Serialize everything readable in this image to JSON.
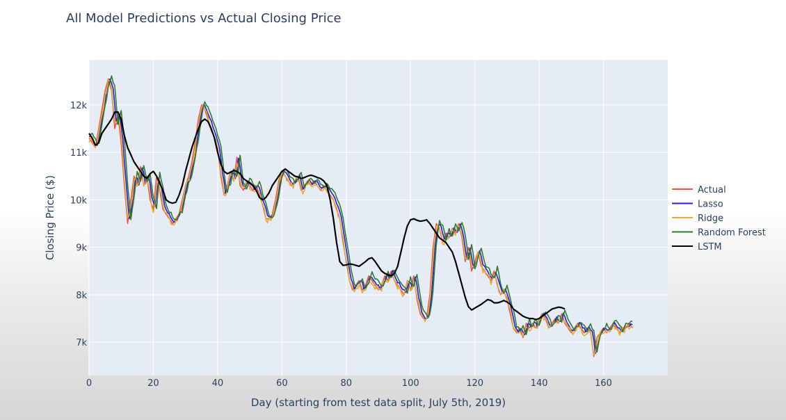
{
  "chart_data": {
    "type": "line",
    "title": "All Model Predictions vs Actual Closing Price",
    "xlabel": "Day (starting from test data split, July 5th, 2019)",
    "ylabel": "Closing Price ($)",
    "xlim": [
      0,
      180
    ],
    "ylim": [
      6300,
      12950
    ],
    "x_ticks": [
      0,
      20,
      40,
      60,
      80,
      100,
      120,
      140,
      160
    ],
    "x_tick_labels": [
      "0",
      "20",
      "40",
      "60",
      "80",
      "100",
      "120",
      "140",
      "160"
    ],
    "y_ticks": [
      7000,
      8000,
      9000,
      10000,
      11000,
      12000
    ],
    "y_tick_labels": [
      "7k",
      "8k",
      "9k",
      "10k",
      "11k",
      "12k"
    ],
    "grid": true,
    "legend_position": "right",
    "anchors": {
      "actual": [
        [
          0,
          11300
        ],
        [
          2,
          11100
        ],
        [
          3,
          11500
        ],
        [
          5,
          12300
        ],
        [
          6,
          12550
        ],
        [
          7,
          12300
        ],
        [
          8,
          11500
        ],
        [
          9,
          11800
        ],
        [
          10,
          11200
        ],
        [
          11,
          10300
        ],
        [
          12,
          9500
        ],
        [
          13,
          10000
        ],
        [
          14,
          10500
        ],
        [
          15,
          10300
        ],
        [
          16,
          10700
        ],
        [
          17,
          10300
        ],
        [
          18,
          10500
        ],
        [
          19,
          10000
        ],
        [
          20,
          9800
        ],
        [
          21,
          10500
        ],
        [
          22,
          10200
        ],
        [
          23,
          9800
        ],
        [
          24,
          9700
        ],
        [
          25,
          9600
        ],
        [
          26,
          9500
        ],
        [
          27,
          9600
        ],
        [
          28,
          9700
        ],
        [
          29,
          10000
        ],
        [
          30,
          10300
        ],
        [
          31,
          10500
        ],
        [
          32,
          10800
        ],
        [
          33,
          11200
        ],
        [
          34,
          11700
        ],
        [
          35,
          12000
        ],
        [
          36,
          11900
        ],
        [
          37,
          11700
        ],
        [
          38,
          11500
        ],
        [
          39,
          11300
        ],
        [
          40,
          11100
        ],
        [
          41,
          10500
        ],
        [
          42,
          10100
        ],
        [
          43,
          10300
        ],
        [
          44,
          10600
        ],
        [
          45,
          10400
        ],
        [
          46,
          10900
        ],
        [
          47,
          10300
        ],
        [
          48,
          10200
        ],
        [
          49,
          10400
        ],
        [
          50,
          10300
        ],
        [
          51,
          10200
        ],
        [
          52,
          10300
        ],
        [
          53,
          10100
        ],
        [
          54,
          9900
        ],
        [
          55,
          9600
        ],
        [
          56,
          9600
        ],
        [
          57,
          9700
        ],
        [
          58,
          10000
        ],
        [
          59,
          10400
        ],
        [
          60,
          10600
        ],
        [
          61,
          10500
        ],
        [
          62,
          10400
        ],
        [
          63,
          10300
        ],
        [
          64,
          10400
        ],
        [
          65,
          10500
        ],
        [
          66,
          10200
        ],
        [
          67,
          10300
        ],
        [
          68,
          10400
        ],
        [
          69,
          10300
        ],
        [
          70,
          10400
        ],
        [
          71,
          10300
        ],
        [
          72,
          10200
        ],
        [
          73,
          10300
        ],
        [
          74,
          10200
        ],
        [
          75,
          10100
        ],
        [
          76,
          10000
        ],
        [
          77,
          9800
        ],
        [
          78,
          9600
        ],
        [
          79,
          9100
        ],
        [
          80,
          8700
        ],
        [
          81,
          8300
        ],
        [
          82,
          8100
        ],
        [
          83,
          8200
        ],
        [
          84,
          8300
        ],
        [
          85,
          8100
        ],
        [
          86,
          8200
        ],
        [
          87,
          8400
        ],
        [
          88,
          8300
        ],
        [
          89,
          8200
        ],
        [
          90,
          8100
        ],
        [
          91,
          8200
        ],
        [
          92,
          8400
        ],
        [
          93,
          8300
        ],
        [
          94,
          8500
        ],
        [
          95,
          8300
        ],
        [
          96,
          8200
        ],
        [
          97,
          8100
        ],
        [
          98,
          8000
        ],
        [
          99,
          8300
        ],
        [
          100,
          8100
        ],
        [
          101,
          8400
        ],
        [
          102,
          7900
        ],
        [
          103,
          7600
        ],
        [
          104,
          7500
        ],
        [
          105,
          7500
        ],
        [
          106,
          8000
        ],
        [
          107,
          9000
        ],
        [
          108,
          9500
        ],
        [
          109,
          9400
        ],
        [
          110,
          9100
        ],
        [
          111,
          9300
        ],
        [
          112,
          9200
        ],
        [
          113,
          9400
        ],
        [
          114,
          9300
        ],
        [
          115,
          9500
        ],
        [
          116,
          9200
        ],
        [
          117,
          8700
        ],
        [
          118,
          9000
        ],
        [
          119,
          8500
        ],
        [
          120,
          8700
        ],
        [
          121,
          8900
        ],
        [
          122,
          8600
        ],
        [
          123,
          8500
        ],
        [
          124,
          8400
        ],
        [
          125,
          8300
        ],
        [
          126,
          8500
        ],
        [
          127,
          8200
        ],
        [
          128,
          8000
        ],
        [
          129,
          8100
        ],
        [
          130,
          7900
        ],
        [
          131,
          7600
        ],
        [
          132,
          7300
        ],
        [
          133,
          7200
        ],
        [
          134,
          7300
        ],
        [
          135,
          7100
        ],
        [
          136,
          7400
        ],
        [
          137,
          7300
        ],
        [
          138,
          7400
        ],
        [
          139,
          7300
        ],
        [
          140,
          7500
        ],
        [
          141,
          7600
        ],
        [
          142,
          7500
        ],
        [
          143,
          7300
        ],
        [
          144,
          7400
        ],
        [
          145,
          7500
        ],
        [
          146,
          7400
        ],
        [
          147,
          7600
        ],
        [
          148,
          7400
        ],
        [
          149,
          7300
        ],
        [
          150,
          7200
        ],
        [
          151,
          7300
        ],
        [
          152,
          7400
        ],
        [
          153,
          7300
        ],
        [
          154,
          7200
        ],
        [
          155,
          7300
        ],
        [
          156,
          7200
        ],
        [
          157,
          6700
        ],
        [
          158,
          7100
        ],
        [
          159,
          7200
        ],
        [
          160,
          7300
        ],
        [
          161,
          7200
        ],
        [
          162,
          7300
        ],
        [
          163,
          7400
        ],
        [
          164,
          7300
        ],
        [
          165,
          7200
        ],
        [
          166,
          7300
        ],
        [
          167,
          7300
        ],
        [
          168,
          7400
        ],
        [
          169,
          7300
        ]
      ],
      "lstm": [
        [
          0,
          11400
        ],
        [
          1,
          11300
        ],
        [
          2,
          11150
        ],
        [
          3,
          11200
        ],
        [
          4,
          11400
        ],
        [
          5,
          11500
        ],
        [
          6,
          11600
        ],
        [
          7,
          11700
        ],
        [
          8,
          11850
        ],
        [
          9,
          11850
        ],
        [
          10,
          11700
        ],
        [
          11,
          11350
        ],
        [
          12,
          11100
        ],
        [
          13,
          10950
        ],
        [
          14,
          10800
        ],
        [
          15,
          10700
        ],
        [
          16,
          10600
        ],
        [
          17,
          10500
        ],
        [
          18,
          10450
        ],
        [
          19,
          10550
        ],
        [
          20,
          10600
        ],
        [
          21,
          10500
        ],
        [
          22,
          10350
        ],
        [
          23,
          10200
        ],
        [
          24,
          10000
        ],
        [
          25,
          9950
        ],
        [
          26,
          9930
        ],
        [
          27,
          9950
        ],
        [
          28,
          10100
        ],
        [
          29,
          10300
        ],
        [
          30,
          10600
        ],
        [
          31,
          10850
        ],
        [
          32,
          11100
        ],
        [
          33,
          11300
        ],
        [
          34,
          11500
        ],
        [
          35,
          11650
        ],
        [
          36,
          11700
        ],
        [
          37,
          11650
        ],
        [
          38,
          11500
        ],
        [
          39,
          11300
        ],
        [
          40,
          11000
        ],
        [
          41,
          10750
        ],
        [
          42,
          10600
        ],
        [
          43,
          10550
        ],
        [
          44,
          10580
        ],
        [
          45,
          10620
        ],
        [
          46,
          10600
        ],
        [
          47,
          10550
        ],
        [
          48,
          10450
        ],
        [
          49,
          10400
        ],
        [
          50,
          10350
        ],
        [
          51,
          10300
        ],
        [
          52,
          10200
        ],
        [
          53,
          10050
        ],
        [
          54,
          10000
        ],
        [
          55,
          10050
        ],
        [
          56,
          10150
        ],
        [
          57,
          10300
        ],
        [
          58,
          10400
        ],
        [
          59,
          10500
        ],
        [
          60,
          10600
        ],
        [
          61,
          10650
        ],
        [
          62,
          10600
        ],
        [
          63,
          10550
        ],
        [
          64,
          10500
        ],
        [
          65,
          10480
        ],
        [
          66,
          10450
        ],
        [
          67,
          10470
        ],
        [
          68,
          10500
        ],
        [
          69,
          10520
        ],
        [
          70,
          10500
        ],
        [
          71,
          10470
        ],
        [
          72,
          10450
        ],
        [
          73,
          10400
        ],
        [
          74,
          10300
        ],
        [
          75,
          10000
        ],
        [
          76,
          9600
        ],
        [
          77,
          9100
        ],
        [
          78,
          8700
        ],
        [
          79,
          8620
        ],
        [
          80,
          8630
        ],
        [
          81,
          8650
        ],
        [
          82,
          8640
        ],
        [
          83,
          8620
        ],
        [
          84,
          8600
        ],
        [
          85,
          8650
        ],
        [
          86,
          8700
        ],
        [
          87,
          8760
        ],
        [
          88,
          8780
        ],
        [
          89,
          8700
        ],
        [
          90,
          8600
        ],
        [
          91,
          8500
        ],
        [
          92,
          8450
        ],
        [
          93,
          8420
        ],
        [
          94,
          8400
        ],
        [
          95,
          8450
        ],
        [
          96,
          8600
        ],
        [
          97,
          8900
        ],
        [
          98,
          9200
        ],
        [
          99,
          9450
        ],
        [
          100,
          9580
        ],
        [
          101,
          9600
        ],
        [
          102,
          9570
        ],
        [
          103,
          9550
        ],
        [
          104,
          9560
        ],
        [
          105,
          9580
        ],
        [
          106,
          9500
        ],
        [
          107,
          9400
        ],
        [
          108,
          9300
        ],
        [
          109,
          9200
        ],
        [
          110,
          9150
        ],
        [
          111,
          9100
        ],
        [
          112,
          9000
        ],
        [
          113,
          8900
        ],
        [
          114,
          8700
        ],
        [
          115,
          8450
        ],
        [
          116,
          8200
        ],
        [
          117,
          7950
        ],
        [
          118,
          7750
        ],
        [
          119,
          7680
        ],
        [
          120,
          7720
        ],
        [
          121,
          7760
        ],
        [
          122,
          7800
        ],
        [
          123,
          7850
        ],
        [
          124,
          7900
        ],
        [
          125,
          7880
        ],
        [
          126,
          7830
        ],
        [
          127,
          7830
        ],
        [
          128,
          7850
        ],
        [
          129,
          7880
        ],
        [
          130,
          7850
        ],
        [
          131,
          7800
        ],
        [
          132,
          7700
        ],
        [
          133,
          7650
        ],
        [
          134,
          7600
        ],
        [
          135,
          7550
        ],
        [
          136,
          7520
        ],
        [
          137,
          7500
        ],
        [
          138,
          7500
        ],
        [
          139,
          7480
        ],
        [
          140,
          7500
        ],
        [
          141,
          7550
        ],
        [
          142,
          7600
        ],
        [
          143,
          7650
        ],
        [
          144,
          7700
        ],
        [
          145,
          7720
        ],
        [
          146,
          7740
        ],
        [
          147,
          7730
        ],
        [
          148,
          7700
        ]
      ]
    },
    "series": [
      {
        "name": "Actual",
        "color": "#ef553b",
        "base": "actual",
        "shift": 0,
        "amp": 0,
        "offset": 0,
        "seed": 3
      },
      {
        "name": "Lasso",
        "color": "#1f1fd4",
        "base": "actual",
        "shift": 0.6,
        "amp": 60,
        "offset": 20,
        "seed": 11
      },
      {
        "name": "Ridge",
        "color": "#e8a83a",
        "base": "actual",
        "shift": 0.2,
        "amp": 160,
        "offset": -30,
        "seed": 23
      },
      {
        "name": "Random Forest",
        "color": "#2f7a2f",
        "base": "actual",
        "shift": 1.0,
        "amp": 90,
        "offset": 60,
        "seed": 37
      },
      {
        "name": "LSTM",
        "color": "#000000",
        "base": "lstm",
        "shift": 0,
        "amp": 0,
        "offset": 0,
        "seed": 5
      }
    ]
  }
}
